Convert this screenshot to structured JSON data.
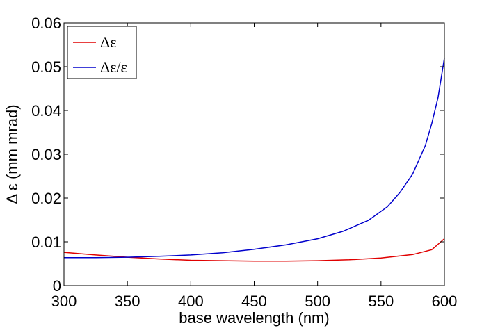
{
  "chart_data": {
    "type": "line",
    "xlabel": "base wavelength (nm)",
    "ylabel": "Δ ε (mm mrad)",
    "xlim": [
      300,
      600
    ],
    "ylim": [
      0,
      0.06
    ],
    "xticks": [
      "300",
      "350",
      "400",
      "450",
      "500",
      "550",
      "600"
    ],
    "yticks": [
      "0",
      "0.01",
      "0.02",
      "0.03",
      "0.04",
      "0.05",
      "0.06"
    ],
    "grid": false,
    "legend_position": "top-left",
    "series": [
      {
        "name": "Δε",
        "color": "#e00000",
        "x": [
          300,
          325,
          350,
          375,
          400,
          425,
          450,
          475,
          500,
          525,
          550,
          575,
          590,
          600
        ],
        "y": [
          0.0076,
          0.007,
          0.0065,
          0.0061,
          0.0058,
          0.0057,
          0.0056,
          0.0056,
          0.0057,
          0.0059,
          0.0063,
          0.0071,
          0.0082,
          0.0107
        ]
      },
      {
        "name": "Δε/ε",
        "color": "#0000cc",
        "x": [
          300,
          325,
          350,
          375,
          400,
          425,
          450,
          475,
          500,
          520,
          540,
          555,
          565,
          575,
          585,
          590,
          595,
          600
        ],
        "y": [
          0.0064,
          0.0064,
          0.0065,
          0.0067,
          0.007,
          0.0075,
          0.0083,
          0.0093,
          0.0107,
          0.0124,
          0.0149,
          0.018,
          0.0213,
          0.0255,
          0.032,
          0.037,
          0.043,
          0.052
        ]
      }
    ]
  }
}
